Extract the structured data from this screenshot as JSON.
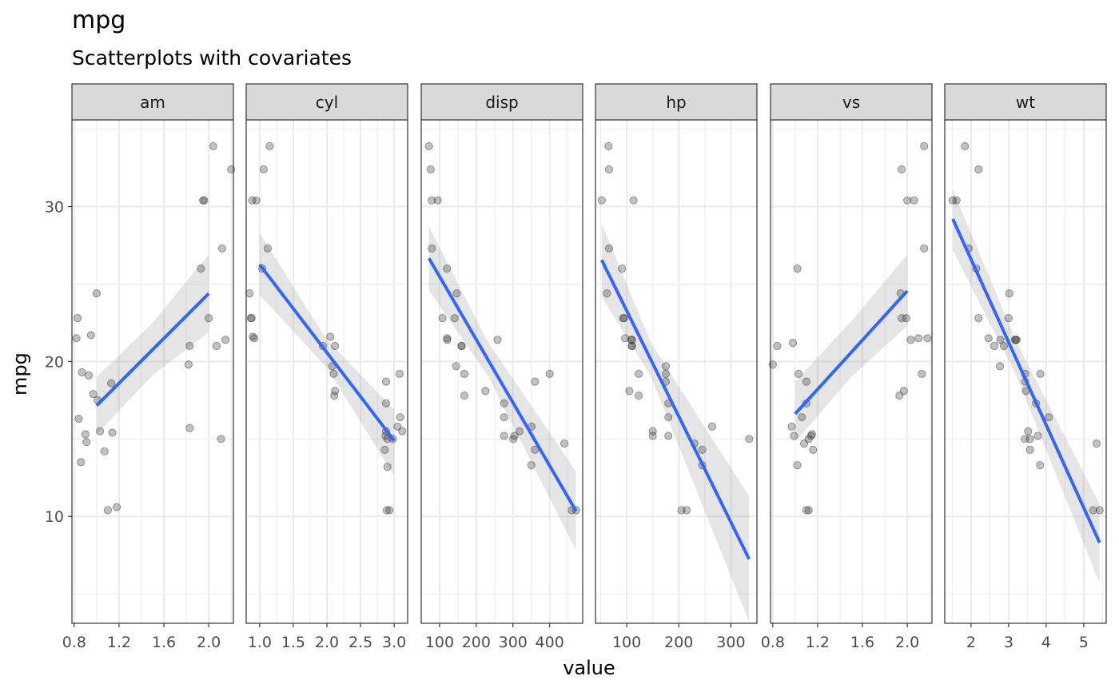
{
  "title": "mpg",
  "subtitle": "Scatterplots with covariates",
  "ylabel": "mpg",
  "xlabel": "value",
  "colors": {
    "point": "#333333",
    "fit_line": "#3366FF",
    "ribbon": "#999999",
    "strip_bg": "#D9D9D9",
    "grid": "#EBEBEB",
    "panel_border": "#333333"
  },
  "chart_data": [
    {
      "type": "scatter",
      "facet": "am",
      "ylim": [
        3.1,
        35.6
      ],
      "xlim": [
        0.78,
        2.22
      ],
      "xticks": [
        0.8,
        1.2,
        1.6,
        2.0
      ],
      "xtick_labels": [
        "0.8",
        "1.2",
        "1.6",
        "2.0"
      ],
      "yticks": [
        10,
        20,
        30
      ],
      "ytick_labels": [
        "10",
        "20",
        "30"
      ],
      "points": [
        [
          0.82,
          21.5
        ],
        [
          0.83,
          22.8
        ],
        [
          0.84,
          16.3
        ],
        [
          0.86,
          13.5
        ],
        [
          0.87,
          19.3
        ],
        [
          0.9,
          15.3
        ],
        [
          0.91,
          14.8
        ],
        [
          0.93,
          19.1
        ],
        [
          0.95,
          21.7
        ],
        [
          0.97,
          17.9
        ],
        [
          1.0,
          24.4
        ],
        [
          1.01,
          17.5
        ],
        [
          1.03,
          15.5
        ],
        [
          1.07,
          14.2
        ],
        [
          1.1,
          10.4
        ],
        [
          1.13,
          18.6
        ],
        [
          1.14,
          15.4
        ],
        [
          1.18,
          10.6
        ],
        [
          1.82,
          19.8
        ],
        [
          1.83,
          21.0
        ],
        [
          1.83,
          15.7
        ],
        [
          1.93,
          26.0
        ],
        [
          1.95,
          30.4
        ],
        [
          1.96,
          30.4
        ],
        [
          2.0,
          22.8
        ],
        [
          2.04,
          33.9
        ],
        [
          2.07,
          21.0
        ],
        [
          2.11,
          15.0
        ],
        [
          2.12,
          27.3
        ],
        [
          2.15,
          21.4
        ],
        [
          2.2,
          32.4
        ]
      ],
      "fit": {
        "x": [
          1.0,
          2.0
        ],
        "y": [
          17.15,
          24.39
        ]
      },
      "ribbon": {
        "x": [
          1.0,
          1.5,
          2.0
        ],
        "lower": [
          15.3,
          19.1,
          21.9
        ],
        "upper": [
          19.0,
          22.5,
          26.9
        ]
      }
    },
    {
      "type": "scatter",
      "facet": "cyl",
      "ylim": [
        3.1,
        35.6
      ],
      "xlim": [
        0.8,
        3.2
      ],
      "xticks": [
        1.0,
        1.5,
        2.0,
        2.5,
        3.0
      ],
      "xtick_labels": [
        "1.0",
        "1.5",
        "2.0",
        "2.5",
        "3.0"
      ],
      "yticks": [
        10,
        20,
        30
      ],
      "ytick_labels": [
        "10",
        "20",
        "30"
      ],
      "points": [
        [
          0.85,
          24.4
        ],
        [
          0.87,
          22.8
        ],
        [
          0.88,
          22.8
        ],
        [
          0.89,
          30.4
        ],
        [
          0.9,
          21.6
        ],
        [
          0.92,
          21.5
        ],
        [
          0.95,
          30.4
        ],
        [
          1.04,
          26.0
        ],
        [
          1.06,
          32.4
        ],
        [
          1.12,
          27.3
        ],
        [
          1.15,
          33.9
        ],
        [
          1.94,
          21.0
        ],
        [
          2.05,
          21.6
        ],
        [
          2.08,
          19.7
        ],
        [
          2.1,
          19.2
        ],
        [
          2.11,
          17.8
        ],
        [
          2.12,
          18.1
        ],
        [
          2.12,
          21.0
        ],
        [
          2.86,
          14.3
        ],
        [
          2.87,
          15.2
        ],
        [
          2.88,
          15.5
        ],
        [
          2.88,
          17.3
        ],
        [
          2.88,
          18.7
        ],
        [
          2.89,
          10.4
        ],
        [
          2.9,
          15.0
        ],
        [
          2.9,
          13.2
        ],
        [
          2.93,
          10.4
        ],
        [
          2.98,
          15.0
        ],
        [
          3.05,
          15.8
        ],
        [
          3.08,
          19.2
        ],
        [
          3.09,
          16.4
        ],
        [
          3.12,
          15.5
        ]
      ],
      "fit": {
        "x": [
          1.0,
          3.0
        ],
        "y": [
          26.26,
          14.89
        ]
      },
      "ribbon": {
        "x": [
          1.0,
          2.0,
          3.0
        ],
        "lower": [
          24.3,
          19.6,
          12.6
        ],
        "upper": [
          28.3,
          21.4,
          16.9
        ]
      }
    },
    {
      "type": "scatter",
      "facet": "disp",
      "ylim": [
        3.1,
        35.6
      ],
      "xlim": [
        50,
        490
      ],
      "xticks": [
        100,
        200,
        300,
        400
      ],
      "xtick_labels": [
        "100",
        "200",
        "300",
        "400"
      ],
      "yticks": [
        10,
        20,
        30
      ],
      "ytick_labels": [
        "10",
        "20",
        "30"
      ],
      "points": [
        [
          71.1,
          33.9
        ],
        [
          75.7,
          32.4
        ],
        [
          78.7,
          30.4
        ],
        [
          79.0,
          27.3
        ],
        [
          95.1,
          30.4
        ],
        [
          108.0,
          22.8
        ],
        [
          120.1,
          26.0
        ],
        [
          120.3,
          21.5
        ],
        [
          121.0,
          21.4
        ],
        [
          140.8,
          22.8
        ],
        [
          145.0,
          19.7
        ],
        [
          146.7,
          24.4
        ],
        [
          160.0,
          21.0
        ],
        [
          160.0,
          21.0
        ],
        [
          167.6,
          19.2
        ],
        [
          167.6,
          17.8
        ],
        [
          225.0,
          18.1
        ],
        [
          258.0,
          21.4
        ],
        [
          275.8,
          17.3
        ],
        [
          275.8,
          16.4
        ],
        [
          275.8,
          15.2
        ],
        [
          301.0,
          15.0
        ],
        [
          304.0,
          15.2
        ],
        [
          318.0,
          15.5
        ],
        [
          350.0,
          13.3
        ],
        [
          351.0,
          15.8
        ],
        [
          360.0,
          18.7
        ],
        [
          360.0,
          14.3
        ],
        [
          400.0,
          19.2
        ],
        [
          440.0,
          14.7
        ],
        [
          460.0,
          10.4
        ],
        [
          472.0,
          10.4
        ]
      ],
      "fit": {
        "x": [
          71.1,
          472.0
        ],
        "y": [
          26.66,
          10.34
        ]
      },
      "ribbon": {
        "x": [
          71.1,
          230.7,
          472.0
        ],
        "lower": [
          24.6,
          19.1,
          7.8
        ],
        "upper": [
          28.7,
          21.3,
          12.9
        ]
      }
    },
    {
      "type": "scatter",
      "facet": "hp",
      "ylim": [
        3.1,
        35.6
      ],
      "xlim": [
        40,
        350
      ],
      "xticks": [
        100,
        200,
        300
      ],
      "xtick_labels": [
        "100",
        "200",
        "300"
      ],
      "yticks": [
        10,
        20,
        30
      ],
      "ytick_labels": [
        "10",
        "20",
        "30"
      ],
      "points": [
        [
          52,
          30.4
        ],
        [
          62,
          24.4
        ],
        [
          65,
          33.9
        ],
        [
          66,
          32.4
        ],
        [
          66,
          27.3
        ],
        [
          91,
          26.0
        ],
        [
          93,
          22.8
        ],
        [
          95,
          22.8
        ],
        [
          97,
          21.5
        ],
        [
          105,
          18.1
        ],
        [
          109,
          21.4
        ],
        [
          110,
          21.0
        ],
        [
          110,
          21.0
        ],
        [
          110,
          21.4
        ],
        [
          113,
          30.4
        ],
        [
          123,
          19.2
        ],
        [
          123,
          17.8
        ],
        [
          150,
          15.5
        ],
        [
          150,
          15.2
        ],
        [
          175,
          18.7
        ],
        [
          175,
          19.2
        ],
        [
          175,
          19.7
        ],
        [
          180,
          16.4
        ],
        [
          180,
          17.3
        ],
        [
          180,
          15.2
        ],
        [
          205,
          10.4
        ],
        [
          215,
          10.4
        ],
        [
          230,
          14.7
        ],
        [
          245,
          13.3
        ],
        [
          245,
          14.3
        ],
        [
          264,
          15.8
        ],
        [
          335,
          15.0
        ]
      ],
      "fit": {
        "x": [
          52,
          335
        ],
        "y": [
          26.55,
          7.24
        ]
      },
      "ribbon": {
        "x": [
          52,
          146.7,
          335
        ],
        "lower": [
          24.2,
          19.0,
          3.2
        ],
        "upper": [
          28.9,
          21.2,
          11.3
        ]
      }
    },
    {
      "type": "scatter",
      "facet": "vs",
      "ylim": [
        3.1,
        35.6
      ],
      "xlim": [
        0.78,
        2.22
      ],
      "xticks": [
        0.8,
        1.2,
        1.6,
        2.0
      ],
      "xtick_labels": [
        "0.8",
        "1.2",
        "1.6",
        "2.0"
      ],
      "yticks": [
        10,
        20,
        30
      ],
      "ytick_labels": [
        "10",
        "20",
        "30"
      ],
      "points": [
        [
          0.8,
          19.8
        ],
        [
          0.84,
          21.0
        ],
        [
          0.97,
          15.8
        ],
        [
          0.98,
          21.2
        ],
        [
          0.99,
          15.2
        ],
        [
          1.02,
          26.0
        ],
        [
          1.02,
          13.3
        ],
        [
          1.03,
          19.2
        ],
        [
          1.06,
          16.4
        ],
        [
          1.08,
          14.7
        ],
        [
          1.1,
          18.7
        ],
        [
          1.1,
          10.4
        ],
        [
          1.1,
          17.3
        ],
        [
          1.12,
          15.0
        ],
        [
          1.12,
          10.4
        ],
        [
          1.14,
          15.2
        ],
        [
          1.15,
          15.3
        ],
        [
          1.16,
          14.3
        ],
        [
          1.93,
          17.8
        ],
        [
          1.94,
          24.4
        ],
        [
          1.95,
          32.4
        ],
        [
          1.95,
          22.8
        ],
        [
          1.97,
          18.1
        ],
        [
          1.99,
          22.8
        ],
        [
          2.0,
          30.4
        ],
        [
          2.03,
          21.4
        ],
        [
          2.06,
          30.4
        ],
        [
          2.1,
          21.5
        ],
        [
          2.13,
          19.2
        ],
        [
          2.15,
          27.3
        ],
        [
          2.15,
          33.9
        ],
        [
          2.18,
          21.5
        ]
      ],
      "fit": {
        "x": [
          1.0,
          2.0
        ],
        "y": [
          16.62,
          24.56
        ]
      },
      "ribbon": {
        "x": [
          1.0,
          1.5,
          2.0
        ],
        "lower": [
          14.8,
          19.0,
          22.3
        ],
        "upper": [
          18.7,
          22.6,
          26.9
        ]
      }
    },
    {
      "type": "scatter",
      "facet": "wt",
      "ylim": [
        3.1,
        35.6
      ],
      "xlim": [
        1.3,
        5.6
      ],
      "xticks": [
        2,
        3,
        4,
        5
      ],
      "xtick_labels": [
        "2",
        "3",
        "4",
        "5"
      ],
      "yticks": [
        10,
        20,
        30
      ],
      "ytick_labels": [
        "10",
        "20",
        "30"
      ],
      "points": [
        [
          1.513,
          30.4
        ],
        [
          1.615,
          30.4
        ],
        [
          1.835,
          33.9
        ],
        [
          1.935,
          27.3
        ],
        [
          2.14,
          26.0
        ],
        [
          2.2,
          32.4
        ],
        [
          2.2,
          22.8
        ],
        [
          2.465,
          21.5
        ],
        [
          2.62,
          21.0
        ],
        [
          2.77,
          19.7
        ],
        [
          2.78,
          21.4
        ],
        [
          2.875,
          21.0
        ],
        [
          3.0,
          22.8
        ],
        [
          3.02,
          24.4
        ],
        [
          3.17,
          21.4
        ],
        [
          3.19,
          21.4
        ],
        [
          3.215,
          21.4
        ],
        [
          3.435,
          15.0
        ],
        [
          3.44,
          18.7
        ],
        [
          3.44,
          19.2
        ],
        [
          3.46,
          18.1
        ],
        [
          3.52,
          15.5
        ],
        [
          3.57,
          14.3
        ],
        [
          3.57,
          15.0
        ],
        [
          3.73,
          17.3
        ],
        [
          3.78,
          15.2
        ],
        [
          3.84,
          13.3
        ],
        [
          3.845,
          19.2
        ],
        [
          4.07,
          16.4
        ],
        [
          5.25,
          10.4
        ],
        [
          5.345,
          14.7
        ],
        [
          5.424,
          10.4
        ]
      ],
      "fit": {
        "x": [
          1.513,
          5.424
        ],
        "y": [
          29.2,
          8.3
        ]
      },
      "ribbon": {
        "x": [
          1.513,
          3.22,
          5.424
        ],
        "lower": [
          27.2,
          19.0,
          5.7
        ],
        "upper": [
          31.1,
          21.2,
          10.8
        ]
      }
    }
  ]
}
